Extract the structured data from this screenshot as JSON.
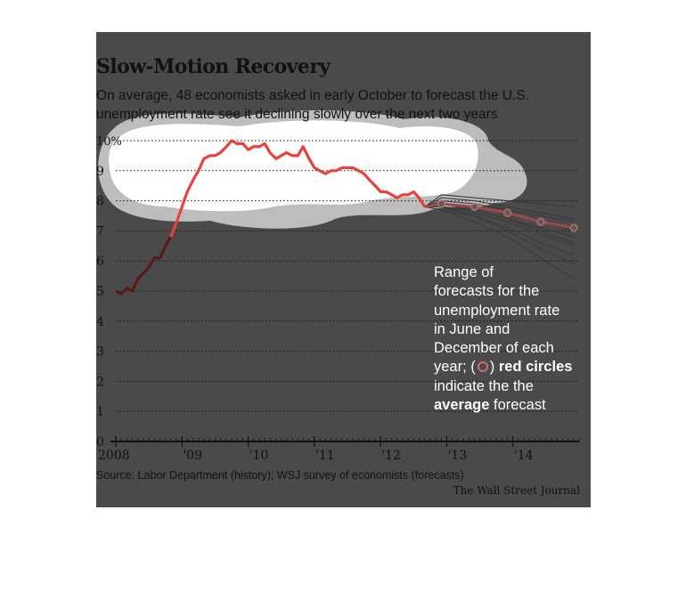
{
  "chart_data": {
    "type": "line",
    "title": "Slow-Motion Recovery",
    "subtitle_line1": "On average, 48 economists asked in early October to forecast the U.S.",
    "subtitle_line2": "unemployment rate see it declining slowly over the next two years",
    "source": "Source: Labor Department (history); WSJ survey of economists (forecasts)",
    "credit": "The Wall Street Journal",
    "ylim": [
      0,
      10
    ],
    "y_ticks": [
      {
        "value": 0,
        "label": "0"
      },
      {
        "value": 1,
        "label": "1"
      },
      {
        "value": 2,
        "label": "2"
      },
      {
        "value": 3,
        "label": "3"
      },
      {
        "value": 4,
        "label": "4"
      },
      {
        "value": 5,
        "label": "5"
      },
      {
        "value": 6,
        "label": "6"
      },
      {
        "value": 7,
        "label": "7"
      },
      {
        "value": 8,
        "label": "8"
      },
      {
        "value": 9,
        "label": "9"
      },
      {
        "value": 10,
        "label": "10%"
      }
    ],
    "xlim": [
      2008.0,
      2015.0
    ],
    "x_ticks": [
      {
        "value": 2008,
        "label": "2008"
      },
      {
        "value": 2009,
        "label": "'09"
      },
      {
        "value": 2010,
        "label": "'10"
      },
      {
        "value": 2011,
        "label": "'11"
      },
      {
        "value": 2012,
        "label": "'12"
      },
      {
        "value": 2013,
        "label": "'13"
      },
      {
        "value": 2014,
        "label": "'14"
      }
    ],
    "grid": true,
    "colors": {
      "history": "#e8423c",
      "history_early": "#5c1616",
      "average_forecast": "#a04848",
      "forecast_range": "#3a3a3a",
      "panel": "#4a4a4a"
    },
    "history": {
      "x": [
        2008.0,
        2008.08,
        2008.17,
        2008.25,
        2008.33,
        2008.42,
        2008.5,
        2008.58,
        2008.67,
        2008.75,
        2008.83,
        2008.92,
        2009.0,
        2009.08,
        2009.17,
        2009.25,
        2009.33,
        2009.42,
        2009.5,
        2009.58,
        2009.67,
        2009.75,
        2009.83,
        2009.92,
        2010.0,
        2010.08,
        2010.17,
        2010.25,
        2010.33,
        2010.42,
        2010.5,
        2010.58,
        2010.67,
        2010.75,
        2010.83,
        2010.92,
        2011.0,
        2011.08,
        2011.17,
        2011.25,
        2011.33,
        2011.42,
        2011.5,
        2011.58,
        2011.67,
        2011.75,
        2011.83,
        2011.92,
        2012.0,
        2012.08,
        2012.17,
        2012.25,
        2012.33,
        2012.42,
        2012.5,
        2012.58,
        2012.67
      ],
      "values": [
        5.0,
        4.9,
        5.1,
        5.0,
        5.4,
        5.6,
        5.8,
        6.1,
        6.1,
        6.5,
        6.8,
        7.3,
        7.8,
        8.3,
        8.7,
        9.0,
        9.4,
        9.5,
        9.5,
        9.6,
        9.8,
        10.0,
        9.9,
        9.9,
        9.7,
        9.8,
        9.8,
        9.9,
        9.6,
        9.4,
        9.5,
        9.6,
        9.5,
        9.5,
        9.8,
        9.4,
        9.1,
        9.0,
        8.9,
        9.0,
        9.0,
        9.1,
        9.1,
        9.1,
        9.0,
        8.9,
        8.7,
        8.5,
        8.3,
        8.3,
        8.2,
        8.1,
        8.2,
        8.2,
        8.3,
        8.1,
        7.8
      ]
    },
    "average_forecast": {
      "x": [
        2012.67,
        2012.92,
        2013.42,
        2013.92,
        2014.42,
        2014.92
      ],
      "values": [
        7.8,
        7.9,
        7.8,
        7.6,
        7.3,
        7.1
      ]
    },
    "forecast_range_lines": [
      [
        8.2,
        8.1,
        8.0,
        7.9,
        7.8
      ],
      [
        8.1,
        8.0,
        7.8,
        7.6,
        7.4
      ],
      [
        8.0,
        7.9,
        7.7,
        7.5,
        7.3
      ],
      [
        7.9,
        7.8,
        7.6,
        7.3,
        7.0
      ],
      [
        7.8,
        7.7,
        7.4,
        7.1,
        6.8
      ],
      [
        7.8,
        7.6,
        7.3,
        6.9,
        6.5
      ],
      [
        7.7,
        7.5,
        7.1,
        6.6,
        6.2
      ],
      [
        7.9,
        7.7,
        7.4,
        7.0,
        6.6
      ],
      [
        7.8,
        7.5,
        7.0,
        6.4,
        5.9
      ],
      [
        7.7,
        7.3,
        6.8,
        6.1,
        5.4
      ]
    ],
    "annotation": {
      "text1": "Range of",
      "text2": "forecasts for the",
      "text3": "unemployment rate",
      "text4": "in June and",
      "text5": "December of each",
      "text6_a": "year; (",
      "text6_b": ")",
      "text6_bold": "red circles",
      "text7": "indicate the the",
      "text8_bold": "average",
      "text8_b": "forecast"
    }
  }
}
